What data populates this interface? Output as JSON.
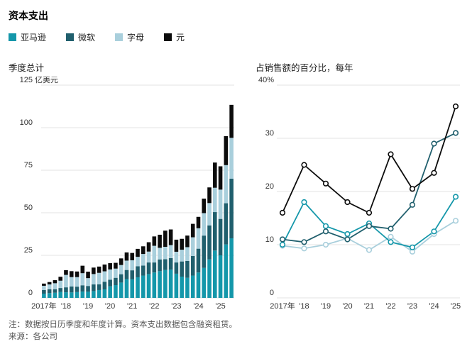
{
  "page": {
    "title": "资本支出",
    "note_line1": "注：数据按日历季度和年度计算。资本支出数据包含融资租赁。",
    "note_line2": "来源：各公司"
  },
  "colors": {
    "amazon": "#1497aa",
    "microsoft": "#205f6d",
    "alphabet": "#a9cfdc",
    "meta": "#0c0c0c",
    "grid": "#e3e3e3",
    "tick_text": "#333333",
    "note_text": "#555555"
  },
  "legend": {
    "items": [
      {
        "key": "amazon",
        "label": "亚马逊",
        "color_key": "amazon"
      },
      {
        "key": "microsoft",
        "label": "微软",
        "color_key": "microsoft"
      },
      {
        "key": "alphabet",
        "label": "字母",
        "color_key": "alphabet"
      },
      {
        "key": "meta",
        "label": "元",
        "color_key": "meta"
      }
    ]
  },
  "chart_data": [
    {
      "type": "bar",
      "stacked": true,
      "title": "季度总计",
      "unit": "亿美元",
      "x_period": "2017Q1–2025Q3（按季度）",
      "ylim": [
        0,
        125
      ],
      "yticks": [
        {
          "v": 0,
          "label": "0"
        },
        {
          "v": 25,
          "label": "25"
        },
        {
          "v": 50,
          "label": "50"
        },
        {
          "v": 75,
          "label": "75"
        },
        {
          "v": 100,
          "label": "100"
        },
        {
          "v": 125,
          "label": "125",
          "suffix": "亿美元"
        }
      ],
      "x_ticks": [
        {
          "index": 0,
          "label": "2017年"
        },
        {
          "index": 4,
          "label": "'18"
        },
        {
          "index": 8,
          "label": "'19"
        },
        {
          "index": 12,
          "label": "'20"
        },
        {
          "index": 16,
          "label": "'21"
        },
        {
          "index": 20,
          "label": "'22"
        },
        {
          "index": 24,
          "label": "'23"
        },
        {
          "index": 28,
          "label": "'24"
        },
        {
          "index": 32,
          "label": "'25"
        }
      ],
      "series": [
        {
          "name": "亚马逊",
          "color_key": "amazon",
          "values": [
            2.5,
            2.8,
            3.0,
            3.5,
            3.3,
            3.2,
            3.4,
            3.7,
            3.6,
            4.0,
            4.6,
            5.0,
            6.8,
            7.5,
            9.0,
            11.0,
            10.9,
            12.1,
            13.1,
            14.0,
            14.9,
            15.7,
            16.4,
            16.6,
            14.2,
            12.5,
            11.8,
            13.1,
            14.9,
            17.6,
            22.6,
            27.8,
            25.0,
            31.4,
            35.0
          ]
        },
        {
          "name": "微软",
          "color_key": "microsoft",
          "values": [
            2.1,
            2.3,
            2.1,
            2.3,
            2.9,
            3.5,
            3.2,
            3.7,
            3.4,
            3.9,
            3.4,
            4.5,
            3.9,
            4.3,
            4.9,
            5.4,
            5.3,
            6.5,
            5.9,
            6.8,
            5.9,
            6.9,
            6.3,
            6.8,
            6.6,
            8.9,
            9.9,
            11.5,
            14.0,
            19.0,
            20.0,
            22.6,
            21.4,
            24.2,
            35.0
          ]
        },
        {
          "name": "字母",
          "color_key": "alphabet",
          "values": [
            2.5,
            2.8,
            3.5,
            4.3,
            7.3,
            5.5,
            5.6,
            7.1,
            4.6,
            6.1,
            6.7,
            6.1,
            6.0,
            5.4,
            5.4,
            5.5,
            5.9,
            5.5,
            6.8,
            6.4,
            9.8,
            6.8,
            7.3,
            7.6,
            6.3,
            6.9,
            8.1,
            11.0,
            12.0,
            13.2,
            13.1,
            14.3,
            17.2,
            22.4,
            24.0
          ]
        },
        {
          "name": "元",
          "color_key": "meta",
          "values": [
            1.3,
            1.4,
            1.8,
            2.3,
            2.8,
            3.5,
            3.3,
            4.4,
            3.8,
            3.8,
            3.7,
            4.0,
            3.7,
            3.4,
            3.9,
            4.8,
            4.3,
            4.7,
            4.5,
            5.5,
            5.5,
            7.7,
            9.5,
            9.2,
            7.1,
            6.4,
            6.8,
            7.9,
            6.7,
            8.5,
            9.2,
            14.8,
            13.7,
            17.0,
            19.4
          ]
        }
      ]
    },
    {
      "type": "line",
      "title": "占销售额的百分比，每年",
      "x": [
        "2017",
        "2018",
        "2019",
        "2020",
        "2021",
        "2022",
        "2023",
        "2024",
        "2025"
      ],
      "x_tick_labels": [
        "2017年",
        "'18",
        "'19",
        "'20",
        "'21",
        "'22",
        "'23",
        "'24",
        "'25"
      ],
      "ylim": [
        0,
        40
      ],
      "yticks": [
        {
          "v": 0,
          "label": "0"
        },
        {
          "v": 10,
          "label": "10"
        },
        {
          "v": 20,
          "label": "20"
        },
        {
          "v": 30,
          "label": "30"
        },
        {
          "v": 40,
          "label": "40%"
        }
      ],
      "series": [
        {
          "name": "字母",
          "color_key": "alphabet",
          "values": [
            9.8,
            9.3,
            10.0,
            11.2,
            9.0,
            11.5,
            8.7,
            12.0,
            14.5
          ]
        },
        {
          "name": "亚马逊",
          "color_key": "amazon",
          "values": [
            10.0,
            18.0,
            13.5,
            12.0,
            14.0,
            10.5,
            9.5,
            12.5,
            19.0
          ]
        },
        {
          "name": "微软",
          "color_key": "microsoft",
          "values": [
            11.0,
            10.5,
            12.5,
            11.0,
            13.5,
            13.0,
            17.5,
            29.0,
            31.0
          ]
        },
        {
          "name": "元",
          "color_key": "meta",
          "values": [
            16.0,
            25.0,
            21.5,
            18.0,
            16.0,
            27.0,
            20.5,
            23.5,
            36.0
          ]
        }
      ]
    }
  ]
}
